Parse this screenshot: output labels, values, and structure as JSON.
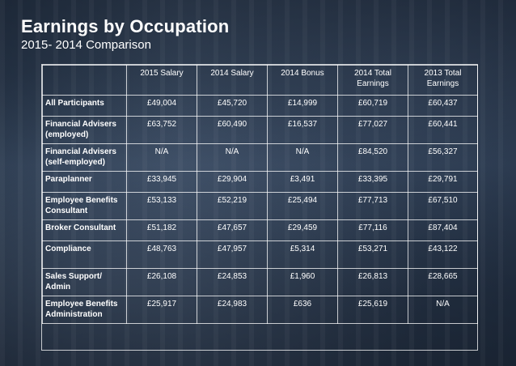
{
  "title": "Earnings by Occupation",
  "subtitle": "2015- 2014 Comparison",
  "table": {
    "headers": [
      "",
      "2015 Salary",
      "2014 Salary",
      "2014 Bonus",
      "2014 Total Earnings",
      "2013 Total Earnings"
    ],
    "rows": [
      {
        "label": "All Participants",
        "cells": [
          "£49,004",
          "£45,720",
          "£14,999",
          "£60,719",
          "£60,437"
        ]
      },
      {
        "label": "Financial Advisers (employed)",
        "cells": [
          "£63,752",
          "£60,490",
          "£16,537",
          "£77,027",
          "£60,441"
        ]
      },
      {
        "label": "Financial Advisers (self-employed)",
        "cells": [
          "N/A",
          "N/A",
          "N/A",
          "£84,520",
          "£56,327"
        ]
      },
      {
        "label": "Paraplanner",
        "cells": [
          "£33,945",
          "£29,904",
          "£3,491",
          "£33,395",
          "£29,791"
        ]
      },
      {
        "label": "Employee Benefits Consultant",
        "cells": [
          "£53,133",
          "£52,219",
          "£25,494",
          "£77,713",
          "£67,510"
        ]
      },
      {
        "label": "Broker Consultant",
        "cells": [
          "£51,182",
          "£47,657",
          "£29,459",
          "£77,116",
          "£87,404"
        ]
      },
      {
        "label": "Compliance",
        "cells": [
          "£48,763",
          "£47,957",
          "£5,314",
          "£53,271",
          "£43,122"
        ]
      },
      {
        "label": "Sales Support/ Admin",
        "cells": [
          "£26,108",
          "£24,853",
          "£1,960",
          "£26,813",
          "£28,665"
        ]
      },
      {
        "label": "Employee Benefits Administration",
        "cells": [
          "£25,917",
          "£24,983",
          "£636",
          "£25,619",
          "N/A"
        ]
      }
    ]
  }
}
